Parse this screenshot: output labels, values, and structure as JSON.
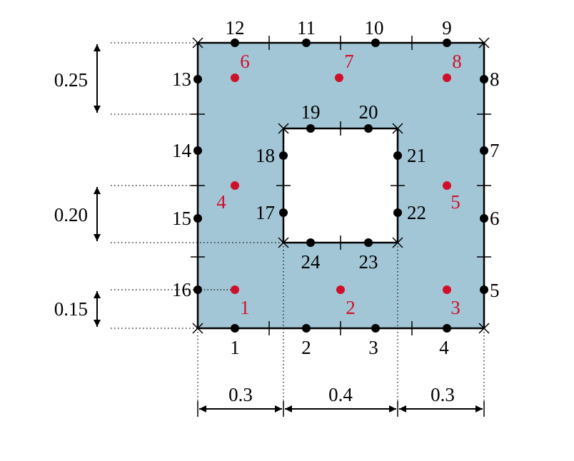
{
  "colors": {
    "section_fill": "#a3c6d6",
    "outline": "#000000",
    "label_black": "#000000",
    "label_red": "#d0102a"
  },
  "dimensions": {
    "widths": [
      "0.3",
      "0.4",
      "0.3"
    ],
    "heights": [
      "0.25",
      "0.20",
      "0.15"
    ]
  },
  "outer_nodes": [
    "1",
    "2",
    "3",
    "4",
    "5",
    "6",
    "7",
    "8",
    "9",
    "10",
    "11",
    "12",
    "13",
    "14",
    "15",
    "16"
  ],
  "inner_nodes": [
    "17",
    "18",
    "19",
    "20",
    "21",
    "22",
    "23",
    "24"
  ],
  "cell_nodes": [
    "1",
    "2",
    "3",
    "4",
    "5",
    "6",
    "7",
    "8"
  ]
}
